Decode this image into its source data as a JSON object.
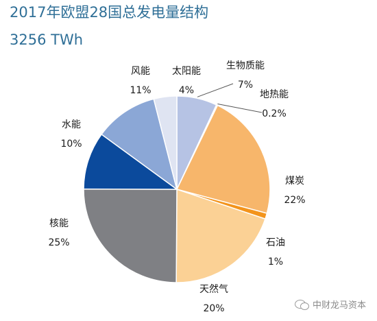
{
  "header": {
    "title": "2017年欧盟28国总发电量结构",
    "subtitle": "3256 TWh"
  },
  "watermark": {
    "text": "中财龙马资本",
    "icon": "wechat-icon"
  },
  "chart_data": {
    "type": "pie",
    "title": "2017年欧盟28国总发电量结构",
    "subtitle": "3256 TWh",
    "start_angle_deg": 0,
    "direction": "clockwise",
    "slices": [
      {
        "name": "生物质能",
        "value": 7,
        "label": "7%",
        "color": "#b6c3e4"
      },
      {
        "name": "地热能",
        "value": 0.2,
        "label": "0.2%",
        "color": "#f3c183"
      },
      {
        "name": "煤炭",
        "value": 22,
        "label": "22%",
        "color": "#f7b66b"
      },
      {
        "name": "石油",
        "value": 1,
        "label": "1%",
        "color": "#f3941c"
      },
      {
        "name": "天然气",
        "value": 20,
        "label": "20%",
        "color": "#fbd195"
      },
      {
        "name": "核能",
        "value": 25,
        "label": "25%",
        "color": "#7f8084"
      },
      {
        "name": "水能",
        "value": 10,
        "label": "10%",
        "color": "#0b4a9c"
      },
      {
        "name": "风能",
        "value": 11,
        "label": "11%",
        "color": "#8ba7d6"
      },
      {
        "name": "太阳能",
        "value": 4,
        "label": "4%",
        "color": "#dfe4f2"
      }
    ]
  }
}
